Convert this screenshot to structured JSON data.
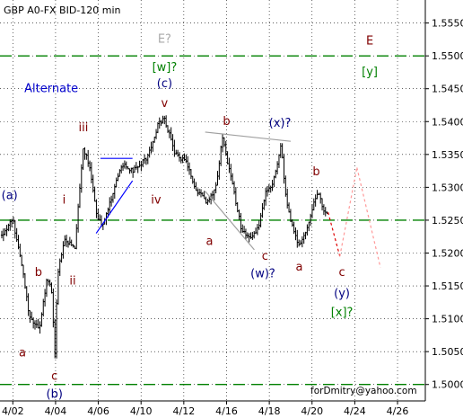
{
  "chart_data": {
    "type": "ohlc",
    "title": "GBP A0-FX BID-120 min",
    "watermark": "forDmitry@yahoo.com",
    "ylim": [
      1.4975,
      1.5585
    ],
    "y_ticks": [
      "1.5550",
      "1.5500",
      "1.5450",
      "1.5400",
      "1.5350",
      "1.5300",
      "1.5250",
      "1.5200",
      "1.5150",
      "1.5100",
      "1.5050",
      "1.5000"
    ],
    "x_ticks": [
      "4/02",
      "4/04",
      "4/06",
      "4/10",
      "4/12",
      "4/16",
      "4/18",
      "4/20",
      "4/24",
      "4/26"
    ],
    "x_tick_pos": [
      0,
      2,
      4,
      6,
      8,
      10,
      12,
      14,
      16,
      18
    ],
    "x_range": [
      -0.6,
      19.3
    ],
    "last_bar_pos": 14.75,
    "levels": [
      {
        "value": 1.55,
        "color": "#008000"
      },
      {
        "value": 1.525,
        "color": "#008000"
      },
      {
        "value": 1.5,
        "color": "#008000"
      }
    ],
    "anchors": [
      {
        "x": -0.6,
        "y": 1.5225
      },
      {
        "x": 0.0,
        "y": 1.525
      },
      {
        "x": 0.4,
        "y": 1.5185
      },
      {
        "x": 0.8,
        "y": 1.51
      },
      {
        "x": 1.25,
        "y": 1.5085
      },
      {
        "x": 1.6,
        "y": 1.516
      },
      {
        "x": 1.85,
        "y": 1.514
      },
      {
        "x": 1.95,
        "y": 1.503
      },
      {
        "x": 2.1,
        "y": 1.517
      },
      {
        "x": 2.4,
        "y": 1.522
      },
      {
        "x": 2.9,
        "y": 1.521
      },
      {
        "x": 3.3,
        "y": 1.536
      },
      {
        "x": 3.6,
        "y": 1.533
      },
      {
        "x": 3.95,
        "y": 1.5255
      },
      {
        "x": 4.2,
        "y": 1.524
      },
      {
        "x": 5.1,
        "y": 1.5335
      },
      {
        "x": 5.6,
        "y": 1.5325
      },
      {
        "x": 6.3,
        "y": 1.5345
      },
      {
        "x": 6.8,
        "y": 1.5395
      },
      {
        "x": 7.1,
        "y": 1.5405
      },
      {
        "x": 7.6,
        "y": 1.535
      },
      {
        "x": 8.1,
        "y": 1.534
      },
      {
        "x": 8.5,
        "y": 1.53
      },
      {
        "x": 9.1,
        "y": 1.5275
      },
      {
        "x": 9.5,
        "y": 1.53
      },
      {
        "x": 9.8,
        "y": 1.5375
      },
      {
        "x": 10.3,
        "y": 1.53
      },
      {
        "x": 10.7,
        "y": 1.5235
      },
      {
        "x": 11.1,
        "y": 1.522
      },
      {
        "x": 11.5,
        "y": 1.524
      },
      {
        "x": 11.8,
        "y": 1.529
      },
      {
        "x": 12.2,
        "y": 1.531
      },
      {
        "x": 12.55,
        "y": 1.5365
      },
      {
        "x": 12.8,
        "y": 1.5275
      },
      {
        "x": 13.1,
        "y": 1.524
      },
      {
        "x": 13.4,
        "y": 1.521
      },
      {
        "x": 13.8,
        "y": 1.524
      },
      {
        "x": 14.1,
        "y": 1.528
      },
      {
        "x": 14.3,
        "y": 1.529
      },
      {
        "x": 14.55,
        "y": 1.5265
      },
      {
        "x": 14.75,
        "y": 1.5262
      }
    ],
    "trend_lines": [
      {
        "x": [
          3.9,
          5.6
        ],
        "y": [
          1.523,
          1.531
        ],
        "color": "#0000ff",
        "dashed": false
      },
      {
        "x": [
          4.1,
          5.6
        ],
        "y": [
          1.5344,
          1.5344
        ],
        "color": "#0000ff",
        "dashed": false
      },
      {
        "x": [
          9.0,
          11.3
        ],
        "y": [
          1.5294,
          1.5205
        ],
        "color": "#a0a0a0",
        "dashed": false
      },
      {
        "x": [
          9.0,
          13.0
        ],
        "y": [
          1.5384,
          1.537
        ],
        "color": "#a0a0a0",
        "dashed": false
      }
    ],
    "projections": [
      {
        "x": [
          14.75,
          15.3
        ],
        "y": [
          1.5262,
          1.5195
        ],
        "color": "#dd0000",
        "dashed": true
      },
      {
        "x": [
          15.3,
          16.1
        ],
        "y": [
          1.5195,
          1.533
        ],
        "color": "#ff9999",
        "dashed": true
      },
      {
        "x": [
          16.1,
          17.2
        ],
        "y": [
          1.533,
          1.5178
        ],
        "color": "#ff9999",
        "dashed": true
      }
    ],
    "wave_labels": [
      {
        "text": "E?",
        "x": 7.1,
        "y": 1.552,
        "color": "#aaaaaa",
        "size": 18
      },
      {
        "text": "E",
        "x": 16.7,
        "y": 1.5517,
        "color": "#800000",
        "size": 20
      },
      {
        "text": "[w]?",
        "x": 7.1,
        "y": 1.5477,
        "color": "#008000",
        "size": 13
      },
      {
        "text": "[y]",
        "x": 16.7,
        "y": 1.547,
        "color": "#008000",
        "size": 13
      },
      {
        "text": "(c)",
        "x": 7.1,
        "y": 1.5452,
        "color": "#000080",
        "size": 13
      },
      {
        "text": "v",
        "x": 7.1,
        "y": 1.5422,
        "color": "#800000",
        "size": 13
      },
      {
        "text": "iii",
        "x": 3.3,
        "y": 1.5385,
        "color": "#800000",
        "size": 13
      },
      {
        "text": "b",
        "x": 10.0,
        "y": 1.5395,
        "color": "#800000",
        "size": 13
      },
      {
        "text": "(x)?",
        "x": 12.5,
        "y": 1.5392,
        "color": "#000080",
        "size": 13
      },
      {
        "text": "b",
        "x": 14.2,
        "y": 1.5318,
        "color": "#800000",
        "size": 13
      },
      {
        "text": "iv",
        "x": 6.7,
        "y": 1.5275,
        "color": "#800000",
        "size": 13
      },
      {
        "text": "(a)",
        "x": -0.15,
        "y": 1.5282,
        "color": "#000080",
        "size": 13
      },
      {
        "text": "i",
        "x": 2.4,
        "y": 1.5275,
        "color": "#800000",
        "size": 13
      },
      {
        "text": "a",
        "x": 9.2,
        "y": 1.5212,
        "color": "#800000",
        "size": 13
      },
      {
        "text": "c",
        "x": 11.8,
        "y": 1.519,
        "color": "#800000",
        "size": 13
      },
      {
        "text": "(w)?",
        "x": 11.7,
        "y": 1.5163,
        "color": "#000080",
        "size": 13
      },
      {
        "text": "a",
        "x": 13.4,
        "y": 1.5173,
        "color": "#800000",
        "size": 13
      },
      {
        "text": "b",
        "x": 1.2,
        "y": 1.5165,
        "color": "#800000",
        "size": 13
      },
      {
        "text": "ii",
        "x": 2.8,
        "y": 1.5152,
        "color": "#800000",
        "size": 13
      },
      {
        "text": "c",
        "x": 15.4,
        "y": 1.5165,
        "color": "#800000",
        "size": 13
      },
      {
        "text": "(y)",
        "x": 15.4,
        "y": 1.5133,
        "color": "#000080",
        "size": 13
      },
      {
        "text": "[x]?",
        "x": 15.4,
        "y": 1.5104,
        "color": "#008000",
        "size": 13
      },
      {
        "text": "a",
        "x": 0.45,
        "y": 1.5043,
        "color": "#800000",
        "size": 13
      },
      {
        "text": "c",
        "x": 1.95,
        "y": 1.5007,
        "color": "#800000",
        "size": 13
      },
      {
        "text": "(b)",
        "x": 1.95,
        "y": 1.498,
        "color": "#000080",
        "size": 13
      },
      {
        "text": "Alternate",
        "x": 1.8,
        "y": 1.5445,
        "color": "#0000cc",
        "size": 14
      }
    ],
    "colors": {
      "bars": "#000000",
      "levels": "#008000",
      "grid": "#000000",
      "frame": "#000000"
    }
  }
}
